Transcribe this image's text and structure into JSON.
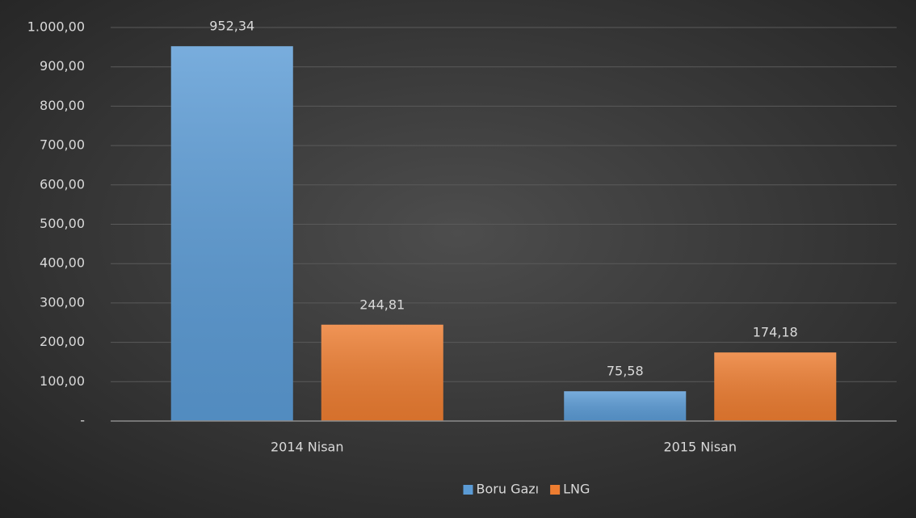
{
  "chart_data": {
    "type": "bar",
    "categories": [
      "2014 Nisan",
      "2015 Nisan"
    ],
    "series": [
      {
        "name": "Boru Gazı",
        "color": "#5b9bd5",
        "values": [
          952.34,
          75.58
        ],
        "value_labels": [
          "952,34",
          "75,58"
        ]
      },
      {
        "name": "LNG",
        "color": "#ed7d31",
        "values": [
          244.81,
          174.18
        ],
        "value_labels": [
          "244,81",
          "174,18"
        ]
      }
    ],
    "ylim": [
      0,
      1000
    ],
    "yticks": [
      {
        "value": 0,
        "label": "-"
      },
      {
        "value": 100,
        "label": "100,00"
      },
      {
        "value": 200,
        "label": "200,00"
      },
      {
        "value": 300,
        "label": "300,00"
      },
      {
        "value": 400,
        "label": "400,00"
      },
      {
        "value": 500,
        "label": "500,00"
      },
      {
        "value": 600,
        "label": "600,00"
      },
      {
        "value": 700,
        "label": "700,00"
      },
      {
        "value": 800,
        "label": "800,00"
      },
      {
        "value": 900,
        "label": "900,00"
      },
      {
        "value": 1000,
        "label": "1.000,00"
      }
    ],
    "grid": true,
    "legend": "bottom"
  }
}
